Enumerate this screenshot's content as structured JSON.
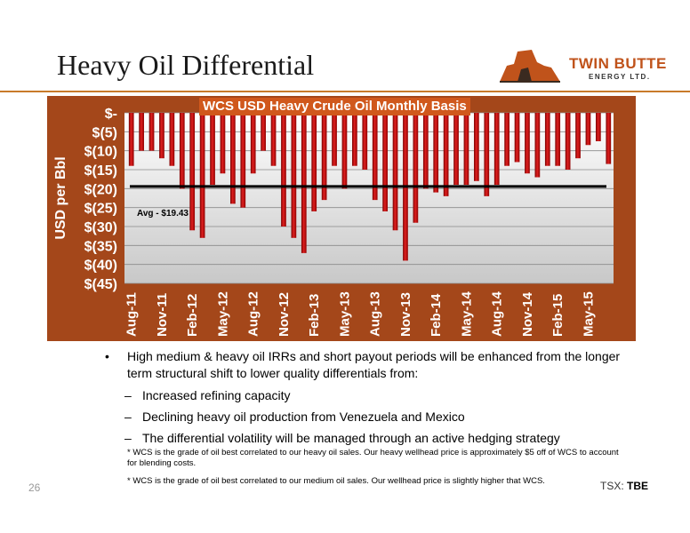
{
  "slide": {
    "title": "Heavy Oil Differential",
    "page_number": "26",
    "tsx_label": "TSX:",
    "tsx_ticker": "TBE"
  },
  "logo": {
    "line1": "TWIN BUTTE",
    "line2": "ENERGY LTD."
  },
  "colors": {
    "panel": "#a4471a",
    "bar": "#c41010",
    "title_band": "#d0581c",
    "avg_line": "#000000"
  },
  "bullets": {
    "main": "High medium & heavy oil IRRs and short payout periods will be enhanced from the longer term structural shift to lower quality differentials from:",
    "subs": [
      "Increased refining capacity",
      "Declining heavy oil production from Venezuela and Mexico",
      "The differential volatility will be managed  through an active  hedging strategy"
    ],
    "footnote1": "* WCS is the grade of oil best correlated to our heavy oil sales. Our heavy wellhead price is approximately $5 off of WCS to account for blending costs.",
    "footnote2": "* WCS is the grade of oil best correlated to our medium oil sales. Our wellhead price is slightly higher that WCS."
  },
  "chart_data": {
    "type": "bar",
    "title": "WCS USD Heavy Crude Oil Monthly Basis",
    "ylabel": "USD per Bbl",
    "ylim": [
      -45,
      0
    ],
    "yticks": [
      "$-",
      "$(5)",
      "$(10)",
      "$(15)",
      "$(20)",
      "$(25)",
      "$(30)",
      "$(35)",
      "$(40)",
      "$(45)"
    ],
    "x_tick_labels": [
      "Aug-11",
      "Nov-11",
      "Feb-12",
      "May-12",
      "Aug-12",
      "Nov-12",
      "Feb-13",
      "May-13",
      "Aug-13",
      "Nov-13",
      "Feb-14",
      "May-14",
      "Aug-14",
      "Nov-14",
      "Feb-15",
      "May-15"
    ],
    "categories": [
      "Aug-11",
      "Sep-11",
      "Oct-11",
      "Nov-11",
      "Dec-11",
      "Jan-12",
      "Feb-12",
      "Mar-12",
      "Apr-12",
      "May-12",
      "Jun-12",
      "Jul-12",
      "Aug-12",
      "Sep-12",
      "Oct-12",
      "Nov-12",
      "Dec-12",
      "Jan-13",
      "Feb-13",
      "Mar-13",
      "Apr-13",
      "May-13",
      "Jun-13",
      "Jul-13",
      "Aug-13",
      "Sep-13",
      "Oct-13",
      "Nov-13",
      "Dec-13",
      "Jan-14",
      "Feb-14",
      "Mar-14",
      "Apr-14",
      "May-14",
      "Jun-14",
      "Jul-14",
      "Aug-14",
      "Sep-14",
      "Oct-14",
      "Nov-14",
      "Dec-14",
      "Jan-15",
      "Feb-15",
      "Mar-15",
      "Apr-15",
      "May-15",
      "Jun-15",
      "Jul-15"
    ],
    "values": [
      -14,
      -10,
      -10,
      -12,
      -14,
      -20,
      -31,
      -33,
      -19,
      -16,
      -24,
      -25,
      -16,
      -10,
      -14,
      -30,
      -33,
      -37,
      -26,
      -23,
      -14,
      -20,
      -14,
      -15,
      -23,
      -26,
      -31,
      -39,
      -29,
      -20,
      -21,
      -22,
      -19,
      -19,
      -18,
      -22,
      -19,
      -14,
      -13,
      -16,
      -17,
      -14,
      -14,
      -15,
      -12,
      -8.5,
      -7.5,
      -13.5
    ],
    "average": -19.43,
    "average_label": "Avg - $19.43",
    "grid": true
  }
}
